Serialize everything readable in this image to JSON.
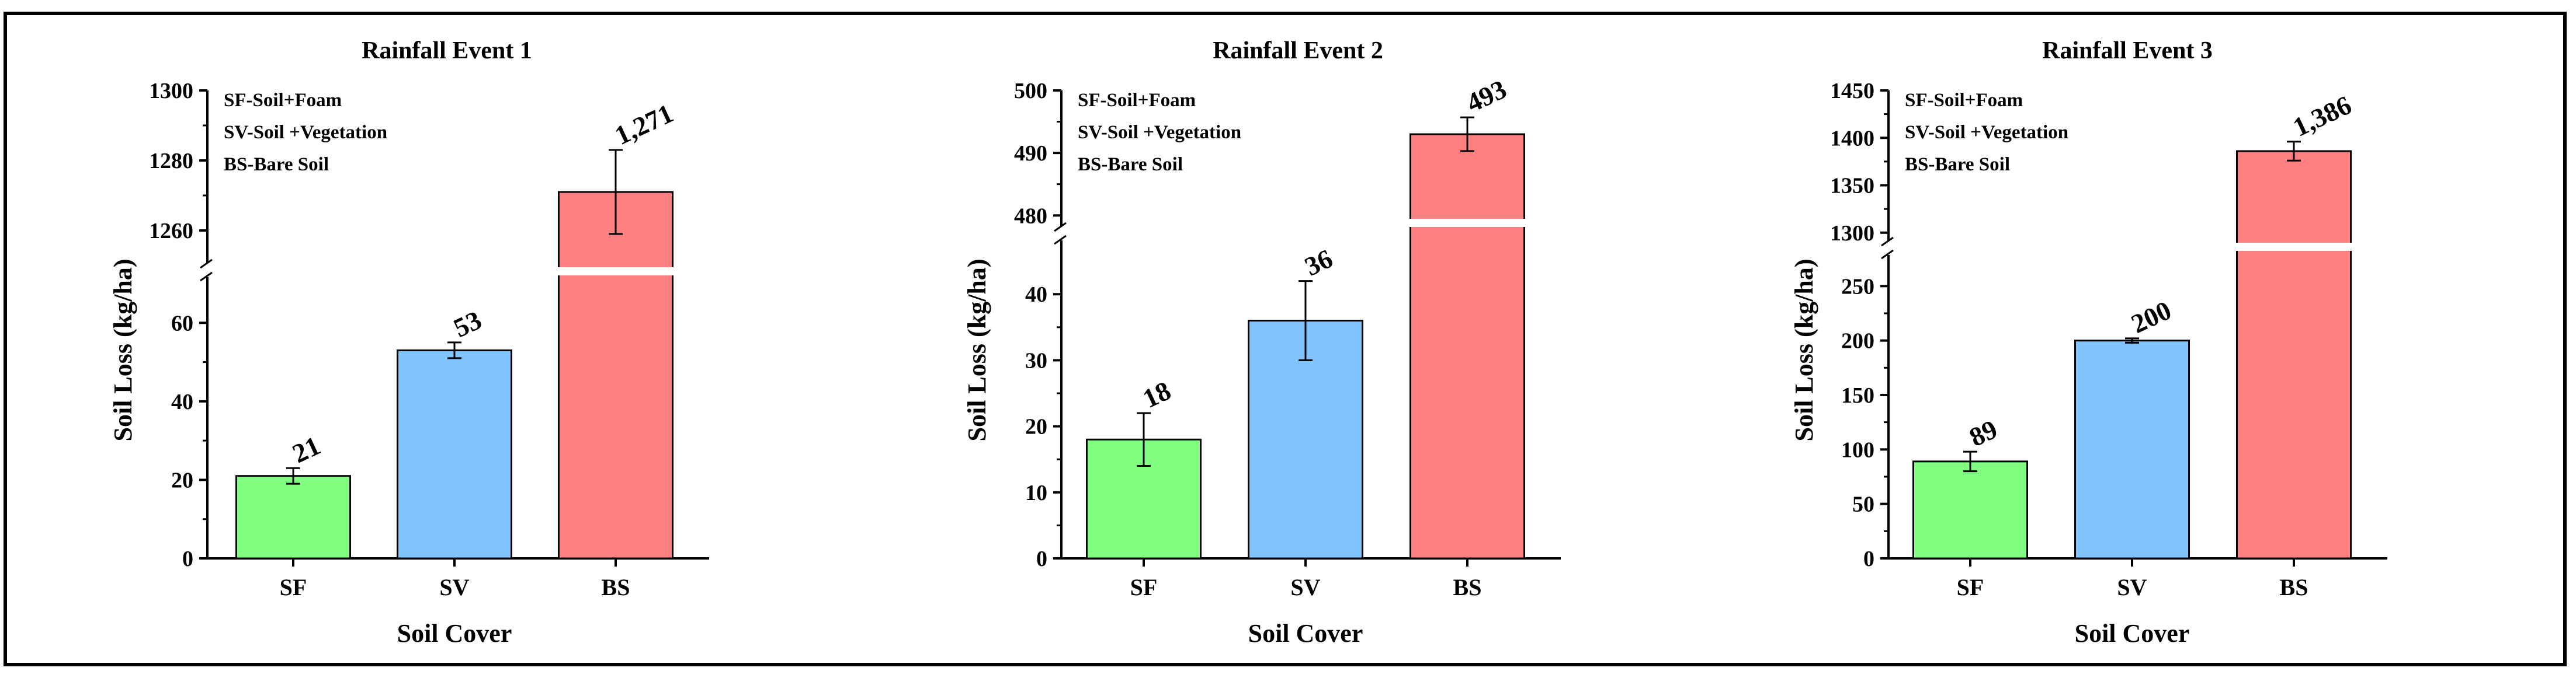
{
  "figure": {
    "x_label": "Soil Cover",
    "y_label": "Soil Loss (kg/ha)"
  },
  "legend": [
    "SF-Soil+Foam",
    "SV-Soil +Vegetation",
    "BS-Bare Soil"
  ],
  "colors": {
    "SF": "#80ff80",
    "SV": "#80c4ff",
    "BS": "#ff8080",
    "axis": "#000000",
    "break": "#ffffff"
  },
  "chart_data": [
    {
      "type": "bar",
      "title": "Rainfall Event 1",
      "xlabel": "Soil Cover",
      "ylabel": "Soil Loss (kg/ha)",
      "categories": [
        "SF",
        "SV",
        "BS"
      ],
      "values": [
        21,
        53,
        1271
      ],
      "value_labels": [
        "21",
        "53",
        "1,271"
      ],
      "error_low": [
        19,
        51,
        1259
      ],
      "error_high": [
        23,
        55,
        1283
      ],
      "axis_break": {
        "lower_range": [
          0,
          70
        ],
        "lower_ticks": [
          0,
          20,
          40,
          60
        ],
        "upper_range": [
          1255,
          1300
        ],
        "upper_ticks": [
          1260,
          1280,
          1300
        ]
      },
      "legend_position": "top-left"
    },
    {
      "type": "bar",
      "title": "Rainfall Event 2",
      "xlabel": "Soil Cover",
      "ylabel": "Soil Loss (kg/ha)",
      "categories": [
        "SF",
        "SV",
        "BS"
      ],
      "values": [
        18,
        36,
        493
      ],
      "value_labels": [
        "18",
        "36",
        "493"
      ],
      "error_low": [
        14,
        30,
        490.3
      ],
      "error_high": [
        22,
        42,
        495.7
      ],
      "axis_break": {
        "lower_range": [
          0,
          47
        ],
        "lower_ticks": [
          0,
          10,
          20,
          30,
          40
        ],
        "upper_range": [
          479,
          500
        ],
        "upper_ticks": [
          480,
          490,
          500
        ]
      },
      "legend_position": "top-left"
    },
    {
      "type": "bar",
      "title": "Rainfall Event 3",
      "xlabel": "Soil Cover",
      "ylabel": "Soil Loss (kg/ha)",
      "categories": [
        "SF",
        "SV",
        "BS"
      ],
      "values": [
        89,
        200,
        1386
      ],
      "value_labels": [
        "89",
        "200",
        "1,386"
      ],
      "error_low": [
        80,
        198,
        1376
      ],
      "error_high": [
        98,
        202,
        1396
      ],
      "axis_break": {
        "lower_range": [
          0,
          270
        ],
        "lower_ticks": [
          0,
          50,
          100,
          150,
          200,
          250
        ],
        "upper_range": [
          1290,
          1450
        ],
        "upper_ticks": [
          1300,
          1350,
          1400,
          1450
        ]
      },
      "legend_position": "top-left"
    }
  ]
}
